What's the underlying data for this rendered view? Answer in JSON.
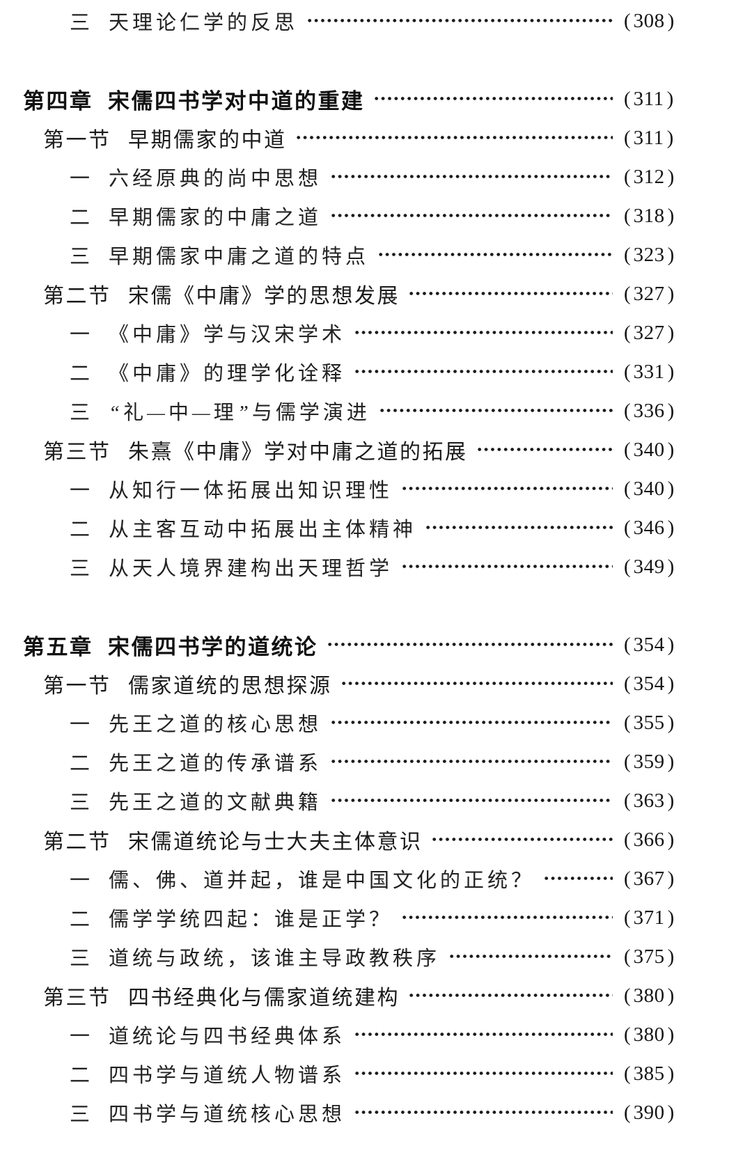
{
  "page": {
    "background": "#ffffff",
    "text_color": "#1d1d1d",
    "dot_leader_color": "#1a1a1a",
    "language": "zh-CN",
    "kind": "book-table-of-contents"
  },
  "toc": {
    "paren_open": "(",
    "paren_close": ")",
    "entries": [
      {
        "level": "sub",
        "num": "三",
        "title": "天理论仁学的反思",
        "page": "308"
      },
      {
        "level": "gap"
      },
      {
        "level": "chapter",
        "num": "第四章",
        "title": "宋儒四书学对中道的重建",
        "page": "311"
      },
      {
        "level": "section",
        "num": "第一节",
        "title": "早期儒家的中道",
        "page": "311"
      },
      {
        "level": "sub",
        "num": "一",
        "title": "六经原典的尚中思想",
        "page": "312"
      },
      {
        "level": "sub",
        "num": "二",
        "title": "早期儒家的中庸之道",
        "page": "318"
      },
      {
        "level": "sub",
        "num": "三",
        "title": "早期儒家中庸之道的特点",
        "page": "323"
      },
      {
        "level": "section",
        "num": "第二节",
        "title": "宋儒《中庸》学的思想发展",
        "page": "327"
      },
      {
        "level": "sub",
        "num": "一",
        "title": "《中庸》学与汉宋学术",
        "page": "327"
      },
      {
        "level": "sub",
        "num": "二",
        "title": "《中庸》的理学化诠释",
        "page": "331"
      },
      {
        "level": "sub",
        "num": "三",
        "title": "“礼—中—理”与儒学演进",
        "page": "336"
      },
      {
        "level": "section",
        "num": "第三节",
        "title": "朱熹《中庸》学对中庸之道的拓展",
        "page": "340"
      },
      {
        "level": "sub",
        "num": "一",
        "title": "从知行一体拓展出知识理性",
        "page": "340"
      },
      {
        "level": "sub",
        "num": "二",
        "title": "从主客互动中拓展出主体精神",
        "page": "346"
      },
      {
        "level": "sub",
        "num": "三",
        "title": "从天人境界建构出天理哲学",
        "page": "349"
      },
      {
        "level": "gap"
      },
      {
        "level": "chapter",
        "num": "第五章",
        "title": "宋儒四书学的道统论",
        "page": "354"
      },
      {
        "level": "section",
        "num": "第一节",
        "title": "儒家道统的思想探源",
        "page": "354"
      },
      {
        "level": "sub",
        "num": "一",
        "title": "先王之道的核心思想",
        "page": "355"
      },
      {
        "level": "sub",
        "num": "二",
        "title": "先王之道的传承谱系",
        "page": "359"
      },
      {
        "level": "sub",
        "num": "三",
        "title": "先王之道的文献典籍",
        "page": "363"
      },
      {
        "level": "section",
        "num": "第二节",
        "title": "宋儒道统论与士大夫主体意识",
        "page": "366"
      },
      {
        "level": "sub",
        "num": "一",
        "title": "儒、佛、道并起，谁是中国文化的正统？",
        "page": "367"
      },
      {
        "level": "sub",
        "num": "二",
        "title": "儒学学统四起：谁是正学？",
        "page": "371"
      },
      {
        "level": "sub",
        "num": "三",
        "title": "道统与政统，该谁主导政教秩序",
        "page": "375"
      },
      {
        "level": "section",
        "num": "第三节",
        "title": "四书经典化与儒家道统建构",
        "page": "380"
      },
      {
        "level": "sub",
        "num": "一",
        "title": "道统论与四书经典体系",
        "page": "380"
      },
      {
        "level": "sub",
        "num": "二",
        "title": "四书学与道统人物谱系",
        "page": "385"
      },
      {
        "level": "sub",
        "num": "三",
        "title": "四书学与道统核心思想",
        "page": "390"
      }
    ]
  }
}
